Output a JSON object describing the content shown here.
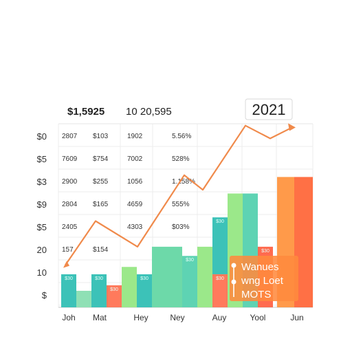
{
  "header": {
    "value_left": "$1,5925",
    "value_right": "10 20,595",
    "year_badge": "2021"
  },
  "chart_data": {
    "type": "bar",
    "title": "",
    "xlabel": "",
    "ylabel": "",
    "grid": true,
    "y_tick_labels": [
      "$0",
      "$5",
      "$3",
      "$9",
      "$5",
      "20",
      "10",
      "$"
    ],
    "x_tick_labels": [
      "Joh",
      "Mat",
      "Hey",
      "Ney",
      "Auy",
      "Yool",
      "Jun"
    ],
    "ylim": [
      0,
      100
    ],
    "bars": [
      {
        "value": 18,
        "color": "#3cc2b8",
        "label": "$30"
      },
      {
        "value": 9,
        "color": "#8fe0b5",
        "label": ""
      },
      {
        "value": 18,
        "color": "#3cc2b8",
        "label": "$30"
      },
      {
        "value": 12,
        "color": "#ff7a5c",
        "label": "$30"
      },
      {
        "value": 22,
        "color": "#9be88a",
        "label": ""
      },
      {
        "value": 18,
        "color": "#3cc2b8",
        "label": "$30"
      },
      {
        "value": 33,
        "color": "#6dd9a9",
        "label": ""
      },
      {
        "value": 28,
        "color": "#5ed3b3",
        "label": "$30"
      },
      {
        "value": 33,
        "color": "#9be88a",
        "label": ""
      },
      {
        "value": 49,
        "color": "#3cc2b8",
        "label": "$30"
      },
      {
        "value": 18,
        "color": "#ff7a5c",
        "label": "$30"
      },
      {
        "value": 62,
        "color": "#9be88a",
        "label": ""
      },
      {
        "value": 33,
        "color": "#ff6b4f",
        "label": "$30"
      },
      {
        "value": 62,
        "color": "#5ed3b3",
        "label": ""
      },
      {
        "value": 71,
        "color": "#ff9a4a",
        "label": ""
      },
      {
        "value": 71,
        "color": "#ff7045",
        "label": ""
      }
    ],
    "line": {
      "color": "#f08a4b",
      "values": [
        23,
        47,
        33,
        72,
        64,
        99,
        92,
        98
      ]
    },
    "table": {
      "rows": [
        [
          "2807",
          "$103",
          "1902",
          "5.56%"
        ],
        [
          "7609",
          "$754",
          "7002",
          "528%"
        ],
        [
          "2900",
          "$255",
          "1056",
          "1.158%"
        ],
        [
          "2804",
          "$165",
          "4659",
          "555%"
        ],
        [
          "2405",
          "",
          "4303",
          "$03%"
        ],
        [
          "157",
          "$154",
          "",
          ""
        ]
      ]
    },
    "annotation": {
      "lines": [
        "Wanues",
        "wng Loet",
        "MOTS"
      ],
      "color": "#ff8a3d"
    }
  }
}
